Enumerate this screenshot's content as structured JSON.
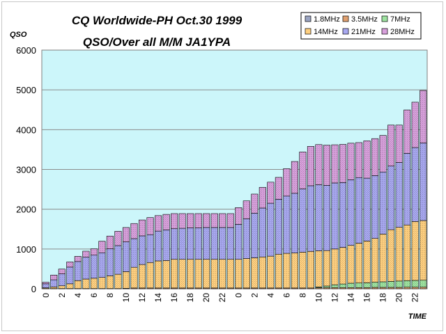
{
  "chart_data": {
    "type": "bar",
    "stacked": true,
    "title": "CQ Worldwide-PH Oct.30 1999",
    "subtitle": "QSO/Over all  M/M JA1YPA",
    "ylabel": "QSO",
    "xlabel": "TIME",
    "ylim": [
      0,
      6000
    ],
    "yticks": [
      "0",
      "1000",
      "2000",
      "3000",
      "4000",
      "5000",
      "6000"
    ],
    "grid": true,
    "legend_position": "top-right",
    "categories": [
      "0",
      "1",
      "2",
      "3",
      "4",
      "5",
      "6",
      "7",
      "8",
      "9",
      "10",
      "11",
      "12",
      "13",
      "14",
      "15",
      "16",
      "17",
      "18",
      "19",
      "20",
      "21",
      "22",
      "23",
      "0",
      "1",
      "2",
      "3",
      "4",
      "5",
      "6",
      "7",
      "8",
      "9",
      "10",
      "11",
      "12",
      "13",
      "14",
      "15",
      "16",
      "17",
      "18",
      "19",
      "20",
      "21",
      "22",
      "23"
    ],
    "x_tick_labels": [
      "0",
      "",
      "2",
      "",
      "4",
      "",
      "6",
      "",
      "8",
      "",
      "10",
      "",
      "12",
      "",
      "14",
      "",
      "16",
      "",
      "18",
      "",
      "20",
      "",
      "22",
      "",
      "0",
      "",
      "2",
      "",
      "4",
      "",
      "6",
      "",
      "8",
      "",
      "10",
      "",
      "12",
      "",
      "14",
      "",
      "16",
      "",
      "18",
      "",
      "20",
      "",
      "22",
      ""
    ],
    "series": [
      {
        "name": "1.8MHz",
        "color": "#9aa4c2",
        "values": [
          0,
          0,
          0,
          0,
          0,
          0,
          0,
          0,
          0,
          0,
          0,
          0,
          0,
          0,
          0,
          0,
          0,
          0,
          0,
          0,
          0,
          0,
          0,
          0,
          0,
          0,
          0,
          0,
          0,
          0,
          0,
          0,
          0,
          0,
          0,
          0,
          0,
          0,
          0,
          0,
          0,
          0,
          0,
          0,
          0,
          0,
          0,
          0
        ]
      },
      {
        "name": "3.5MHz",
        "color": "#e0a070",
        "values": [
          5,
          5,
          5,
          5,
          5,
          5,
          5,
          5,
          5,
          5,
          10,
          20,
          20,
          20,
          20,
          20,
          20,
          20,
          20,
          20,
          20,
          20,
          20,
          20,
          20,
          20,
          20,
          20,
          20,
          20,
          20,
          20,
          20,
          20,
          25,
          30,
          30,
          30,
          30,
          30,
          30,
          35,
          35,
          35,
          35,
          40,
          40,
          40
        ]
      },
      {
        "name": "7MHz",
        "color": "#9ee3a0",
        "values": [
          0,
          0,
          0,
          0,
          0,
          0,
          0,
          0,
          0,
          0,
          0,
          0,
          0,
          0,
          0,
          0,
          0,
          0,
          0,
          0,
          0,
          0,
          0,
          0,
          0,
          0,
          0,
          0,
          0,
          0,
          0,
          0,
          0,
          0,
          20,
          40,
          70,
          90,
          110,
          115,
          120,
          130,
          140,
          150,
          160,
          165,
          170,
          175
        ]
      },
      {
        "name": "14MHz",
        "color": "#ffd080",
        "values": [
          20,
          40,
          70,
          120,
          200,
          240,
          260,
          280,
          320,
          360,
          420,
          520,
          590,
          640,
          680,
          690,
          720,
          720,
          720,
          720,
          720,
          720,
          720,
          720,
          720,
          740,
          760,
          780,
          800,
          850,
          870,
          880,
          900,
          920,
          910,
          890,
          900,
          920,
          950,
          1000,
          1050,
          1100,
          1200,
          1300,
          1350,
          1400,
          1480,
          1500
        ]
      },
      {
        "name": "21MHz",
        "color": "#a8a8f0",
        "values": [
          100,
          180,
          300,
          420,
          480,
          550,
          580,
          620,
          680,
          720,
          750,
          720,
          720,
          700,
          750,
          770,
          770,
          780,
          790,
          790,
          800,
          800,
          800,
          800,
          880,
          1000,
          1120,
          1230,
          1330,
          1380,
          1440,
          1500,
          1590,
          1650,
          1660,
          1640,
          1660,
          1630,
          1650,
          1650,
          1580,
          1580,
          1560,
          1600,
          1630,
          1800,
          1860,
          1950
        ]
      },
      {
        "name": "28MHz",
        "color": "#d8a0dc",
        "values": [
          40,
          120,
          120,
          130,
          130,
          150,
          160,
          290,
          320,
          360,
          360,
          380,
          400,
          430,
          390,
          390,
          380,
          370,
          360,
          360,
          350,
          350,
          350,
          350,
          420,
          450,
          480,
          520,
          530,
          550,
          690,
          800,
          930,
          990,
          1010,
          1010,
          960,
          960,
          920,
          880,
          940,
          930,
          920,
          1030,
          940,
          1090,
          1140,
          1320
        ]
      }
    ]
  }
}
